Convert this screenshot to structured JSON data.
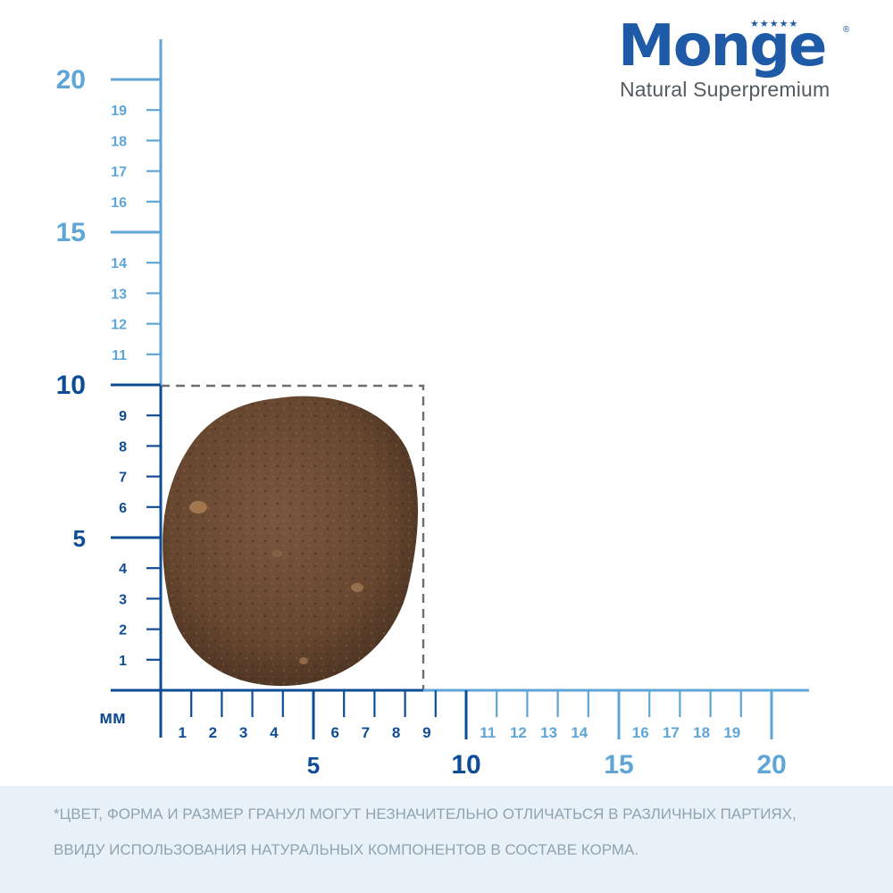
{
  "brand": {
    "name": "Monge",
    "tagline": "Natural Superpremium",
    "color": "#1f5aa6"
  },
  "scale": {
    "unit_label": "мм",
    "vertical_minor": [
      "1",
      "2",
      "3",
      "4",
      "6",
      "7",
      "8",
      "9",
      "11",
      "12",
      "13",
      "14",
      "16",
      "17",
      "18",
      "19"
    ],
    "vertical_major": [
      "5",
      "10",
      "15",
      "20"
    ],
    "horizontal_minor": [
      "1",
      "2",
      "3",
      "4",
      "6",
      "7",
      "8",
      "9",
      "11",
      "12",
      "13",
      "14",
      "16",
      "17",
      "18",
      "19"
    ],
    "horizontal_major": [
      "5",
      "10",
      "15",
      "20"
    ],
    "color_near": "#0e4c95",
    "color_far": "#5fa6d6"
  },
  "kibble": {
    "width_mm": 9,
    "height_mm": 10,
    "color": "#6b4a33"
  },
  "footer": {
    "line1": "*ЦВЕТ, ФОРМА И РАЗМЕР ГРАНУЛ МОГУТ НЕЗНАЧИТЕЛЬНО ОТЛИЧАТЬСЯ В РАЗЛИЧНЫХ ПАРТИЯХ,",
    "line2": "ВВИДУ ИСПОЛЬЗОВАНИЯ НАТУРАЛЬНЫХ КОМПОНЕНТОВ В СОСТАВЕ КОРМА."
  }
}
